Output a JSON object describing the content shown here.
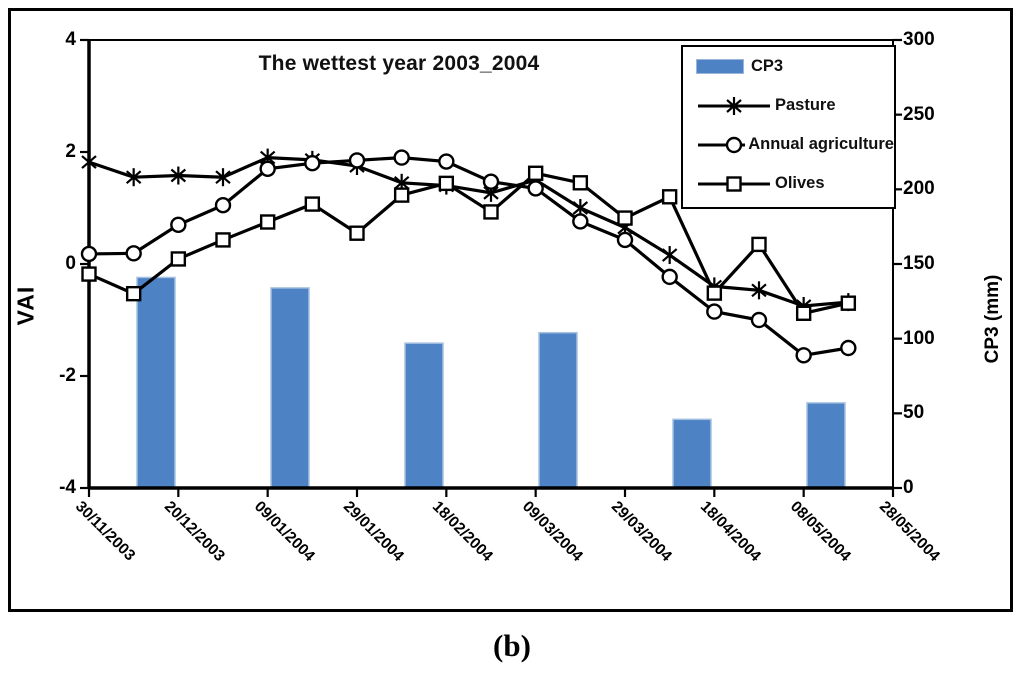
{
  "figure": {
    "caption": "(b)"
  },
  "chart_data": {
    "type": "combo: bar + line, dual y-axes",
    "title": "The wettest year 2003_2004",
    "x_tick_labels": [
      "30/11/2003",
      "20/12/2003",
      "09/01/2004",
      "29/01/2004",
      "18/02/2004",
      "09/03/2004",
      "29/03/2004",
      "18/04/2004",
      "08/05/2004",
      "28/05/2004"
    ],
    "x_layout_note": "18 line points evenly spaced from the first tick; visible date labels mark every 2nd point; 6 bars occupy 6 equal slots across the plot",
    "left_axis": {
      "label": "VAI",
      "min": -4,
      "max": 4,
      "tick_labels": [
        "4",
        "2",
        "0",
        "-2",
        "-4"
      ],
      "tick_values": [
        4,
        2,
        0,
        -2,
        -4
      ]
    },
    "right_axis": {
      "label": "CP3 (mm)",
      "min": 0,
      "max": 300,
      "tick_labels": [
        "300",
        "250",
        "200",
        "150",
        "100",
        "50",
        "0"
      ],
      "tick_values": [
        300,
        250,
        200,
        150,
        100,
        50,
        0
      ]
    },
    "bar_series": {
      "name": "CP3",
      "axis": "right",
      "color": "#4d82c4",
      "edge_color": "#a6c1e0",
      "values": [
        141,
        134,
        97,
        104,
        46,
        57
      ]
    },
    "line_series": [
      {
        "name": "Pasture",
        "marker": "asterisk",
        "axis": "left",
        "values": [
          1.82,
          1.55,
          1.58,
          1.55,
          1.9,
          1.86,
          1.75,
          1.45,
          1.4,
          1.27,
          1.5,
          1.0,
          0.65,
          0.16,
          -0.4,
          -0.47,
          -0.75,
          -0.68
        ]
      },
      {
        "name": "Annual agriculture",
        "marker": "circle",
        "axis": "left",
        "values": [
          0.18,
          0.19,
          0.7,
          1.05,
          1.7,
          1.8,
          1.85,
          1.9,
          1.83,
          1.47,
          1.35,
          0.76,
          0.43,
          -0.23,
          -0.85,
          -1.0,
          -1.63,
          -1.5
        ]
      },
      {
        "name": "Olives",
        "marker": "square",
        "axis": "left",
        "values": [
          -0.18,
          -0.53,
          0.09,
          0.43,
          0.75,
          1.07,
          0.55,
          1.23,
          1.44,
          0.93,
          1.62,
          1.45,
          0.82,
          1.2,
          -0.52,
          0.35,
          -0.88,
          -0.7
        ]
      }
    ],
    "legend": {
      "position": "top-right",
      "items": [
        "CP3",
        "Pasture",
        "Annual agriculture",
        "Olives"
      ]
    },
    "grid": false,
    "line_color": "#000000"
  }
}
